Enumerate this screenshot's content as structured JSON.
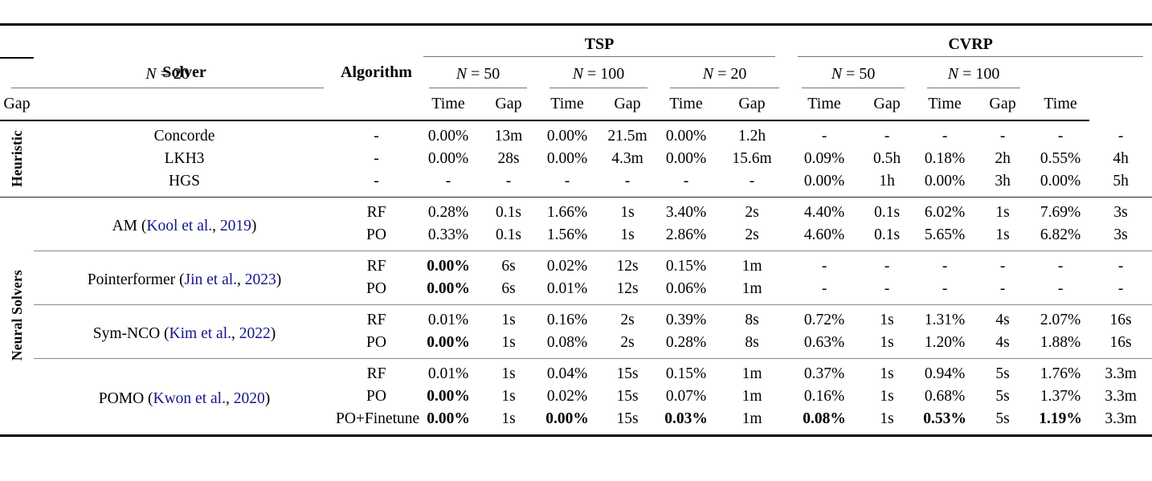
{
  "colors": {
    "citation": "#14148c",
    "rule_heavy": "#000000",
    "rule_light": "#767676"
  },
  "header": {
    "solver": "Solver",
    "algorithm": "Algorithm",
    "metric_labels": [
      "Gap",
      "Time"
    ],
    "problem_groups": [
      {
        "label": "TSP",
        "sizes": [
          {
            "variable": "N",
            "rest": "= 20"
          },
          {
            "variable": "N",
            "rest": "= 50"
          },
          {
            "variable": "N",
            "rest": "= 100"
          }
        ]
      },
      {
        "label": "CVRP",
        "sizes": [
          {
            "variable": "N",
            "rest": "= 20"
          },
          {
            "variable": "N",
            "rest": "= 50"
          },
          {
            "variable": "N",
            "rest": "= 100"
          }
        ]
      }
    ]
  },
  "body": {
    "groups": [
      {
        "label": "Heuristic",
        "solvers": [
          {
            "name_parts": [
              {
                "text": "Concorde",
                "link": false
              }
            ],
            "rows": [
              {
                "algorithm": "-",
                "cells": [
                  "0.00%",
                  "13m",
                  "0.00%",
                  "21.5m",
                  "0.00%",
                  "1.2h",
                  "-",
                  "-",
                  "-",
                  "-",
                  "-",
                  "-"
                ]
              }
            ]
          },
          {
            "name_parts": [
              {
                "text": "LKH3",
                "link": false
              }
            ],
            "rows": [
              {
                "algorithm": "-",
                "cells": [
                  "0.00%",
                  "28s",
                  "0.00%",
                  "4.3m",
                  "0.00%",
                  "15.6m",
                  "0.09%",
                  "0.5h",
                  "0.18%",
                  "2h",
                  "0.55%",
                  "4h"
                ]
              }
            ]
          },
          {
            "name_parts": [
              {
                "text": "HGS",
                "link": false
              }
            ],
            "rows": [
              {
                "algorithm": "-",
                "cells": [
                  "-",
                  "-",
                  "-",
                  "-",
                  "-",
                  "-",
                  "0.00%",
                  "1h",
                  "0.00%",
                  "3h",
                  "0.00%",
                  "5h"
                ]
              }
            ]
          }
        ]
      },
      {
        "label": "Neural Solvers",
        "solvers": [
          {
            "name_parts": [
              {
                "text": "AM (",
                "link": false
              },
              {
                "text": "Kool et al.",
                "link": true
              },
              {
                "text": ", ",
                "link": false
              },
              {
                "text": "2019",
                "link": true
              },
              {
                "text": ")",
                "link": false
              }
            ],
            "rows": [
              {
                "algorithm": "RF",
                "cells": [
                  "0.28%",
                  "0.1s",
                  "1.66%",
                  "1s",
                  "3.40%",
                  "2s",
                  "4.40%",
                  "0.1s",
                  "6.02%",
                  "1s",
                  "7.69%",
                  "3s"
                ]
              },
              {
                "algorithm": "PO",
                "cells": [
                  "0.33%",
                  "0.1s",
                  "1.56%",
                  "1s",
                  "2.86%",
                  "2s",
                  "4.60%",
                  "0.1s",
                  "5.65%",
                  "1s",
                  "6.82%",
                  "3s"
                ]
              }
            ]
          },
          {
            "name_parts": [
              {
                "text": "Pointerformer (",
                "link": false
              },
              {
                "text": "Jin et al.",
                "link": true
              },
              {
                "text": ", ",
                "link": false
              },
              {
                "text": "2023",
                "link": true
              },
              {
                "text": ")",
                "link": false
              }
            ],
            "rows": [
              {
                "algorithm": "RF",
                "cells": [
                  {
                    "text": "0.00%",
                    "bold": true
                  },
                  "6s",
                  "0.02%",
                  "12s",
                  "0.15%",
                  "1m",
                  "-",
                  "-",
                  "-",
                  "-",
                  "-",
                  "-"
                ]
              },
              {
                "algorithm": "PO",
                "cells": [
                  {
                    "text": "0.00%",
                    "bold": true
                  },
                  "6s",
                  "0.01%",
                  "12s",
                  "0.06%",
                  "1m",
                  "-",
                  "-",
                  "-",
                  "-",
                  "-",
                  "-"
                ]
              }
            ]
          },
          {
            "name_parts": [
              {
                "text": "Sym-NCO (",
                "link": false
              },
              {
                "text": "Kim et al.",
                "link": true
              },
              {
                "text": ", ",
                "link": false
              },
              {
                "text": "2022",
                "link": true
              },
              {
                "text": ")",
                "link": false
              }
            ],
            "rows": [
              {
                "algorithm": "RF",
                "cells": [
                  "0.01%",
                  "1s",
                  "0.16%",
                  "2s",
                  "0.39%",
                  "8s",
                  "0.72%",
                  "1s",
                  "1.31%",
                  "4s",
                  "2.07%",
                  "16s"
                ]
              },
              {
                "algorithm": "PO",
                "cells": [
                  {
                    "text": "0.00%",
                    "bold": true
                  },
                  "1s",
                  "0.08%",
                  "2s",
                  "0.28%",
                  "8s",
                  "0.63%",
                  "1s",
                  "1.20%",
                  "4s",
                  "1.88%",
                  "16s"
                ]
              }
            ]
          },
          {
            "name_parts": [
              {
                "text": "POMO (",
                "link": false
              },
              {
                "text": "Kwon et al.",
                "link": true
              },
              {
                "text": ", ",
                "link": false
              },
              {
                "text": "2020",
                "link": true
              },
              {
                "text": ")",
                "link": false
              }
            ],
            "rows": [
              {
                "algorithm": "RF",
                "cells": [
                  "0.01%",
                  "1s",
                  "0.04%",
                  "15s",
                  "0.15%",
                  "1m",
                  "0.37%",
                  "1s",
                  "0.94%",
                  "5s",
                  "1.76%",
                  "3.3m"
                ]
              },
              {
                "algorithm": "PO",
                "cells": [
                  {
                    "text": "0.00%",
                    "bold": true
                  },
                  "1s",
                  "0.02%",
                  "15s",
                  "0.07%",
                  "1m",
                  "0.16%",
                  "1s",
                  "0.68%",
                  "5s",
                  "1.37%",
                  "3.3m"
                ]
              },
              {
                "algorithm": "PO+Finetune",
                "cells": [
                  {
                    "text": "0.00%",
                    "bold": true
                  },
                  "1s",
                  {
                    "text": "0.00%",
                    "bold": true
                  },
                  "15s",
                  {
                    "text": "0.03%",
                    "bold": true
                  },
                  "1m",
                  {
                    "text": "0.08%",
                    "bold": true
                  },
                  "1s",
                  {
                    "text": "0.53%",
                    "bold": true
                  },
                  "5s",
                  {
                    "text": "1.19%",
                    "bold": true
                  },
                  "3.3m"
                ]
              }
            ]
          }
        ]
      }
    ]
  }
}
